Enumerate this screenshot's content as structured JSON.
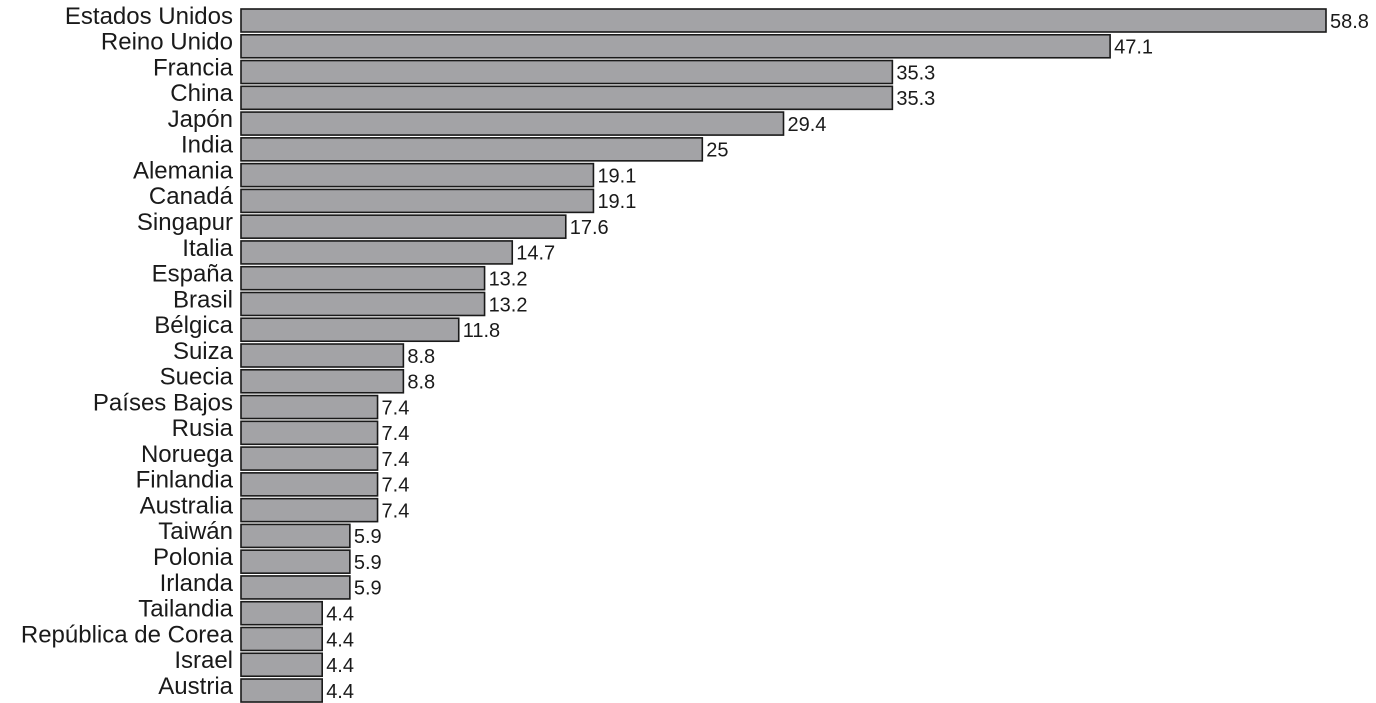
{
  "chart_data": {
    "type": "bar",
    "orientation": "horizontal",
    "color": "#a3a3a6",
    "categories": [
      "Estados Unidos",
      "Reino Unido",
      "Francia",
      "China",
      "Japón",
      "India",
      "Alemania",
      "Canadá",
      "Singapur",
      "Italia",
      "España",
      "Brasil",
      "Bélgica",
      "Suiza",
      "Suecia",
      "Países Bajos",
      "Rusia",
      "Noruega",
      "Finlandia",
      "Australia",
      "Taiwán",
      "Polonia",
      "Irlanda",
      "Tailandia",
      "República de Corea",
      "Israel",
      "Austria"
    ],
    "values": [
      58.8,
      47.1,
      35.3,
      35.3,
      29.4,
      25,
      19.1,
      19.1,
      17.6,
      14.7,
      13.2,
      13.2,
      11.8,
      8.8,
      8.8,
      7.4,
      7.4,
      7.4,
      7.4,
      7.4,
      5.9,
      5.9,
      5.9,
      4.4,
      4.4,
      4.4,
      4.4
    ]
  }
}
